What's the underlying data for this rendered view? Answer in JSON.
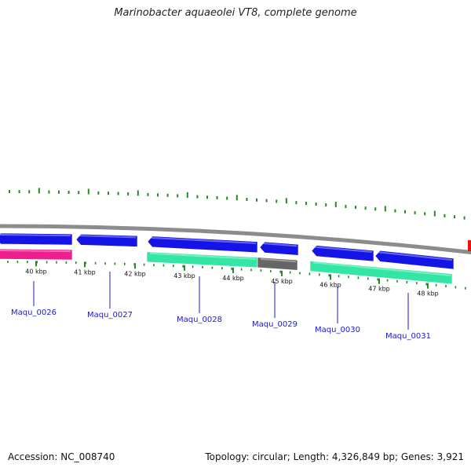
{
  "title": "Marinobacter aquaeolei VT8, complete genome",
  "footer": {
    "accession": "Accession: NC_008740",
    "summary": "Topology: circular; Length: 4,326,849 bp; Genes: 3,921"
  },
  "colors": {
    "forward_cds": "#1414e6",
    "reverse_cds_green": "#33e6a6",
    "reverse_cds_pink": "#ee1e8c",
    "reverse_cds_gray": "#666666",
    "backbone": "#8c8c8c",
    "gc_ticks": "#228b22",
    "edge_feature": "#ee1111"
  },
  "ruler": {
    "unit": "kbp",
    "labels": [
      "40 kbp",
      "41 kbp",
      "42 kbp",
      "43 kbp",
      "44 kbp",
      "45 kbp",
      "46 kbp",
      "47 kbp",
      "48 kbp"
    ]
  },
  "genes": [
    {
      "label": "Maqu_0026"
    },
    {
      "label": "Maqu_0027"
    },
    {
      "label": "Maqu_0028"
    },
    {
      "label": "Maqu_0029"
    },
    {
      "label": "Maqu_0030"
    },
    {
      "label": "Maqu_0031"
    }
  ],
  "features": [
    {
      "name": "forward-cds-1",
      "strand": "forward",
      "color": "forward_cds"
    },
    {
      "name": "forward-cds-2",
      "strand": "forward",
      "color": "forward_cds"
    },
    {
      "name": "forward-cds-3",
      "strand": "forward",
      "color": "forward_cds"
    },
    {
      "name": "forward-cds-4",
      "strand": "forward",
      "color": "forward_cds"
    },
    {
      "name": "forward-cds-5",
      "strand": "forward",
      "color": "forward_cds"
    },
    {
      "name": "forward-cds-6",
      "strand": "forward",
      "color": "forward_cds"
    },
    {
      "name": "reverse-cds-pink",
      "strand": "reverse",
      "color": "reverse_cds_pink"
    },
    {
      "name": "reverse-cds-green-1",
      "strand": "reverse",
      "color": "reverse_cds_green"
    },
    {
      "name": "reverse-cds-gray",
      "strand": "reverse",
      "color": "reverse_cds_gray"
    },
    {
      "name": "reverse-cds-green-2",
      "strand": "reverse",
      "color": "reverse_cds_green"
    }
  ]
}
